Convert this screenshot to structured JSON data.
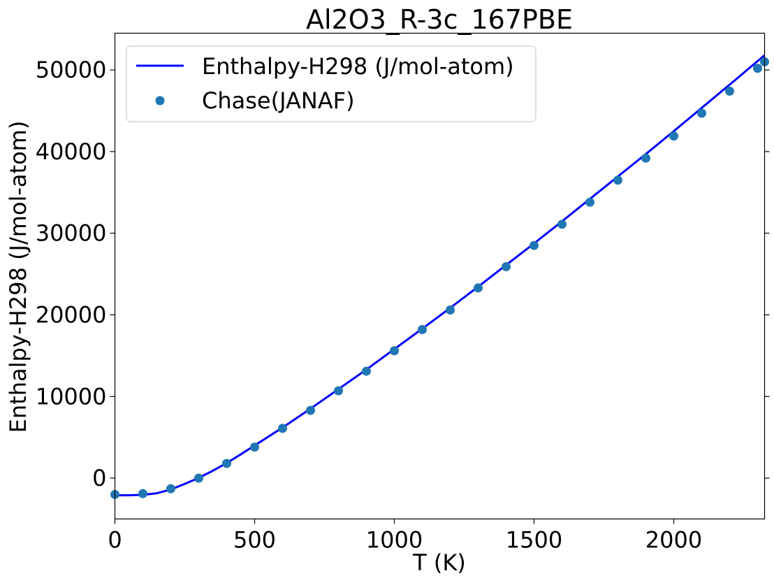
{
  "chart_data": {
    "type": "line",
    "title": "Al2O3_R-3c_167PBE",
    "xlabel": "T (K)",
    "ylabel": "Enthalpy-H298 (J/mol-atom)",
    "xlim": [
      0,
      2325
    ],
    "ylim": [
      -5000,
      54500
    ],
    "xticks": [
      0,
      500,
      1000,
      1500,
      2000
    ],
    "yticks": [
      0,
      10000,
      20000,
      30000,
      40000,
      50000
    ],
    "grid": false,
    "legend_position": "upper-left",
    "series": [
      {
        "name": "Enthalpy-H298 (J/mol-atom)",
        "kind": "line",
        "color": "#0000ff",
        "x": [
          0,
          50,
          100,
          150,
          200,
          250,
          298,
          350,
          400,
          450,
          500,
          600,
          700,
          800,
          900,
          1000,
          1100,
          1200,
          1300,
          1400,
          1500,
          1600,
          1700,
          1800,
          1900,
          2000,
          2100,
          2200,
          2325
        ],
        "y": [
          -2100,
          -2100,
          -2050,
          -1850,
          -1400,
          -700,
          0,
          900,
          1850,
          2900,
          4000,
          6200,
          8500,
          10900,
          13300,
          15800,
          18300,
          20850,
          23450,
          26100,
          28750,
          31450,
          34200,
          36950,
          39700,
          42500,
          45350,
          48200,
          51800
        ]
      },
      {
        "name": "Chase(JANAF)",
        "kind": "scatter",
        "color": "#1f77b4",
        "x": [
          0,
          100,
          200,
          300,
          400,
          500,
          600,
          700,
          800,
          900,
          1000,
          1100,
          1200,
          1300,
          1400,
          1500,
          1600,
          1700,
          1800,
          1900,
          2000,
          2100,
          2200,
          2300,
          2325
        ],
        "y": [
          -2000,
          -1900,
          -1300,
          0,
          1800,
          3800,
          6100,
          8300,
          10700,
          13100,
          15600,
          18200,
          20600,
          23300,
          25900,
          28500,
          31100,
          33800,
          36500,
          39200,
          41900,
          44700,
          47400,
          50200,
          51000
        ]
      }
    ]
  }
}
